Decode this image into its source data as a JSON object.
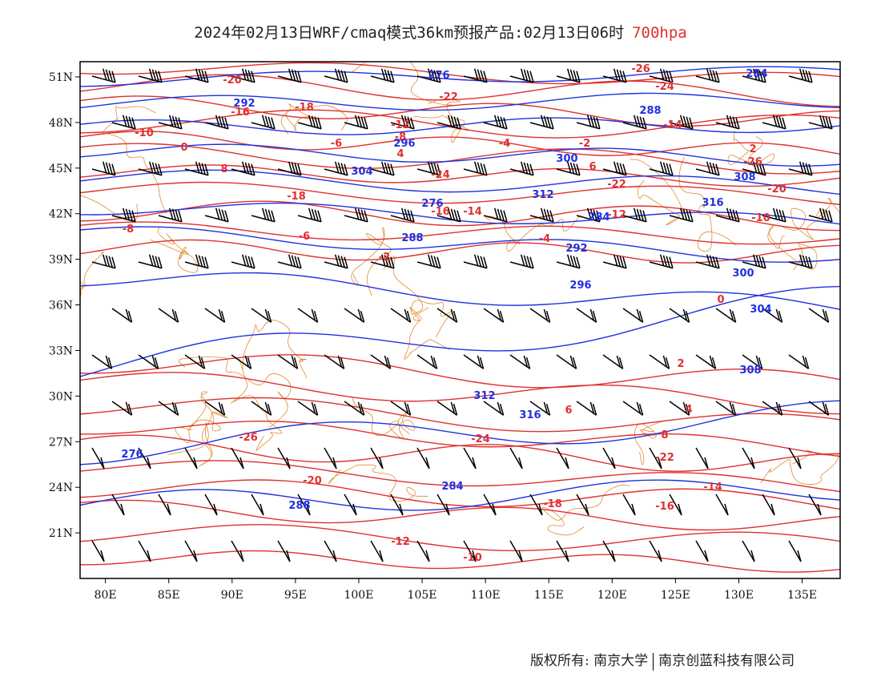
{
  "title": {
    "main": "2024年02月13日WRF/cmaq模式36km预报产品:02月13日06时",
    "level": "700hpa",
    "level_color": "#e03030"
  },
  "map": {
    "lon_range": [
      78,
      138
    ],
    "lat_range": [
      18,
      52
    ],
    "lon_ticks": [
      "80E",
      "85E",
      "90E",
      "95E",
      "100E",
      "105E",
      "110E",
      "115E",
      "120E",
      "125E",
      "130E",
      "135E"
    ],
    "lat_ticks": [
      "51N",
      "48N",
      "45N",
      "42N",
      "39N",
      "36N",
      "33N",
      "30N",
      "27N",
      "24N",
      "21N"
    ],
    "colors": {
      "temperature_contours": "#e03030",
      "height_contours": "#2030e0",
      "boundaries": "#e08a30",
      "wind_barbs": "#000000"
    },
    "temperature_labels": [
      "-26",
      "-24",
      "-22",
      "-20",
      "-18",
      "-16",
      "-14",
      "-12",
      "-10",
      "-8",
      "-6",
      "-4",
      "-2",
      "0",
      "2",
      "4",
      "6",
      "8"
    ],
    "height_labels": [
      "276",
      "284",
      "288",
      "292",
      "296",
      "300",
      "304",
      "308",
      "312",
      "316"
    ]
  },
  "footer": {
    "owner_prefix": "版权所有:",
    "org1": "南京大学",
    "org2": "南京创蓝科技有限公司"
  }
}
